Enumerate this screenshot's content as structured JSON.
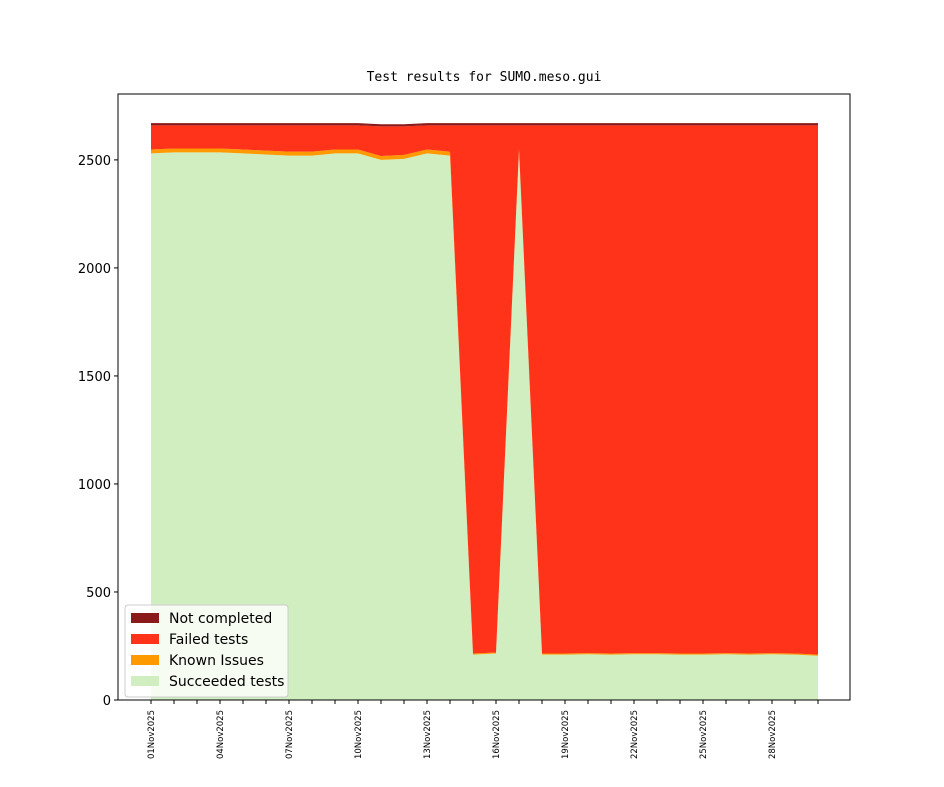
{
  "chart_data": {
    "type": "stacked_area",
    "title": "Test results for SUMO.meso.gui",
    "categories": [
      "01Nov2025",
      null,
      null,
      "04Nov2025",
      null,
      null,
      "07Nov2025",
      null,
      null,
      "10Nov2025",
      null,
      null,
      "13Nov2025",
      null,
      null,
      "16Nov2025",
      null,
      null,
      "19Nov2025",
      null,
      null,
      "22Nov2025",
      null,
      null,
      "25Nov2025",
      null,
      null,
      "28Nov2025",
      null,
      null
    ],
    "series": [
      {
        "name": "Succeeded tests",
        "color": "#d0eebf",
        "values": [
          2530,
          2535,
          2535,
          2535,
          2530,
          2525,
          2520,
          2520,
          2530,
          2530,
          2500,
          2505,
          2530,
          2520,
          210,
          215,
          2540,
          210,
          210,
          212,
          210,
          212,
          212,
          210,
          210,
          212,
          210,
          212,
          210,
          205
        ]
      },
      {
        "name": "Known Issues",
        "color": "#ff9900",
        "values": [
          18,
          18,
          18,
          18,
          18,
          18,
          18,
          18,
          18,
          18,
          18,
          18,
          18,
          18,
          5,
          5,
          10,
          5,
          5,
          5,
          5,
          5,
          5,
          5,
          5,
          5,
          5,
          5,
          5,
          5
        ]
      },
      {
        "name": "Failed tests",
        "color": "#ff3319",
        "values": [
          112,
          107,
          107,
          107,
          112,
          117,
          122,
          122,
          112,
          112,
          137,
          132,
          112,
          122,
          2445,
          2440,
          110,
          2445,
          2445,
          2443,
          2445,
          2443,
          2443,
          2445,
          2445,
          2443,
          2445,
          2443,
          2445,
          2450
        ]
      },
      {
        "name": "Not completed",
        "color": "#8b1a1a",
        "values": [
          10,
          10,
          10,
          10,
          10,
          10,
          10,
          10,
          10,
          10,
          10,
          10,
          10,
          10,
          10,
          10,
          10,
          10,
          10,
          10,
          10,
          10,
          10,
          10,
          10,
          10,
          10,
          10,
          10,
          10
        ]
      }
    ],
    "ylim": [
      0,
      2805
    ],
    "yticks": [
      0,
      500,
      1000,
      1500,
      2000,
      2500
    ],
    "legend": "lower left"
  }
}
